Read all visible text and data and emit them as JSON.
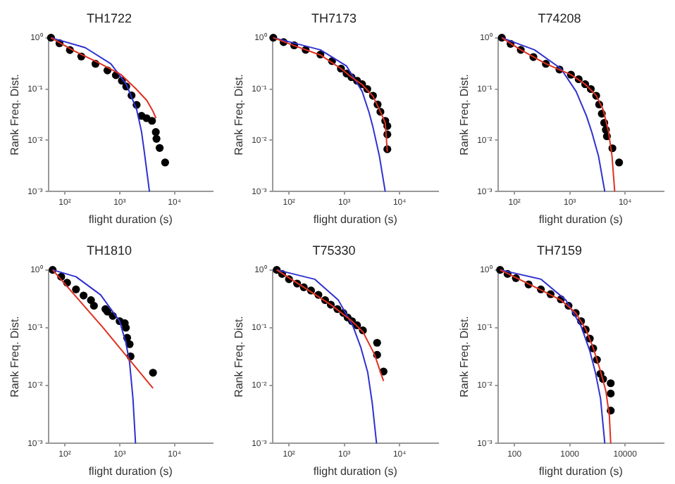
{
  "chart_data": [
    {
      "type": "scatter",
      "title": "TH1722",
      "xlabel": "flight duration (s)",
      "ylabel": "Rank Freq. Dist.",
      "log": "xy",
      "grid": false,
      "legend": false,
      "xlim": [
        50,
        50000
      ],
      "ylim": [
        0.001,
        1
      ],
      "xticks": [
        {
          "value": 100,
          "label": "10²"
        },
        {
          "value": 1000,
          "label": "10³"
        },
        {
          "value": 10000,
          "label": "10⁴"
        }
      ],
      "yticks": [
        {
          "value": 0.001,
          "label": "10⁻³"
        },
        {
          "value": 0.01,
          "label": "10⁻²"
        },
        {
          "value": 0.1,
          "label": "10⁻¹"
        },
        {
          "value": 1,
          "label": "10⁰"
        }
      ],
      "series": [
        {
          "marker": "circle",
          "color": "#000000",
          "x": [
            56,
            80,
            124,
            200,
            363,
            600,
            855,
            1100,
            1320,
            1650,
            2040,
            2510,
            3100,
            3890,
            4570,
            4700,
            5370,
            6760
          ],
          "values": [
            1,
            0.78,
            0.575,
            0.43,
            0.31,
            0.23,
            0.186,
            0.145,
            0.112,
            0.075,
            0.049,
            0.03,
            0.027,
            0.024,
            0.0145,
            0.0107,
            0.0071,
            0.0037
          ]
        },
        {
          "type": "line",
          "color": "#e03020",
          "x": [
            56,
            150,
            400,
            1070,
            2000,
            3130,
            4000,
            4600
          ],
          "values": [
            1,
            0.55,
            0.33,
            0.19,
            0.1,
            0.06,
            0.038,
            0.027
          ]
        },
        {
          "type": "line",
          "color": "#3030d0",
          "x": [
            56,
            236,
            690,
            1320,
            2040,
            2500,
            2800,
            3500
          ],
          "values": [
            1,
            0.64,
            0.31,
            0.124,
            0.04,
            0.015,
            0.0063,
            0.001
          ]
        }
      ]
    },
    {
      "type": "scatter",
      "title": "TH7173",
      "xlabel": "flight duration (s)",
      "ylabel": "Rank Freq. Dist.",
      "log": "xy",
      "grid": false,
      "legend": false,
      "xlim": [
        50,
        50000
      ],
      "ylim": [
        0.001,
        1
      ],
      "xticks": [
        {
          "value": 100,
          "label": "10²"
        },
        {
          "value": 1000,
          "label": "10³"
        },
        {
          "value": 10000,
          "label": "10⁴"
        }
      ],
      "yticks": [
        {
          "value": 0.001,
          "label": "10⁻³"
        },
        {
          "value": 0.01,
          "label": "10⁻²"
        },
        {
          "value": 0.1,
          "label": "10⁻¹"
        },
        {
          "value": 1,
          "label": "10⁰"
        }
      ],
      "series": [
        {
          "marker": "circle",
          "color": "#000000",
          "x": [
            52,
            80,
            124,
            200,
            370,
            600,
            870,
            1100,
            1350,
            1700,
            2100,
            2600,
            3300,
            4000,
            4500,
            5500,
            6000,
            6000,
            6000
          ],
          "values": [
            1,
            0.82,
            0.71,
            0.58,
            0.47,
            0.35,
            0.25,
            0.2,
            0.17,
            0.145,
            0.124,
            0.1,
            0.074,
            0.05,
            0.036,
            0.024,
            0.019,
            0.013,
            0.0067
          ]
        },
        {
          "type": "line",
          "color": "#e03020",
          "x": [
            52,
            124,
            370,
            870,
            1350,
            2100,
            3300,
            4500,
            5500,
            6000
          ],
          "values": [
            1,
            0.7,
            0.46,
            0.25,
            0.17,
            0.122,
            0.072,
            0.036,
            0.022,
            0.006
          ]
        },
        {
          "type": "line",
          "color": "#3030d0",
          "x": [
            52,
            370,
            1100,
            2100,
            2800,
            3300,
            4300,
            5500
          ],
          "values": [
            1,
            0.58,
            0.28,
            0.09,
            0.035,
            0.018,
            0.005,
            0.001
          ]
        }
      ]
    },
    {
      "type": "scatter",
      "title": "T74208",
      "xlabel": "flight duration (s)",
      "ylabel": "Rank Freq. Dist.",
      "log": "xy",
      "grid": false,
      "legend": false,
      "xlim": [
        50,
        50000
      ],
      "ylim": [
        0.001,
        1
      ],
      "xticks": [
        {
          "value": 100,
          "label": "10²"
        },
        {
          "value": 1000,
          "label": "10³"
        },
        {
          "value": 10000,
          "label": "10⁴"
        }
      ],
      "yticks": [
        {
          "value": 0.001,
          "label": "10⁻³"
        },
        {
          "value": 0.01,
          "label": "10⁻²"
        },
        {
          "value": 0.1,
          "label": "10⁻¹"
        },
        {
          "value": 1,
          "label": "10⁰"
        }
      ],
      "series": [
        {
          "marker": "circle",
          "color": "#000000",
          "x": [
            59,
            85,
            130,
            220,
            370,
            650,
            1050,
            1450,
            1900,
            2400,
            3000,
            3400,
            3800,
            4200,
            4500,
            4700,
            5900,
            7800
          ],
          "values": [
            1,
            0.76,
            0.58,
            0.42,
            0.31,
            0.24,
            0.19,
            0.155,
            0.124,
            0.1,
            0.074,
            0.05,
            0.033,
            0.022,
            0.016,
            0.012,
            0.007,
            0.0037
          ]
        },
        {
          "type": "line",
          "color": "#e03020",
          "x": [
            59,
            130,
            370,
            1050,
            1900,
            3000,
            4000,
            5000,
            5800,
            6500
          ],
          "values": [
            1,
            0.58,
            0.31,
            0.19,
            0.124,
            0.075,
            0.04,
            0.015,
            0.005,
            0.001
          ]
        },
        {
          "type": "line",
          "color": "#3030d0",
          "x": [
            59,
            230,
            690,
            1300,
            2000,
            2500,
            3300,
            4300
          ],
          "values": [
            1,
            0.58,
            0.25,
            0.09,
            0.03,
            0.0145,
            0.005,
            0.001
          ]
        }
      ]
    },
    {
      "type": "scatter",
      "title": "TH1810",
      "xlabel": "flight duration (s)",
      "ylabel": "Rank Freq. Dist.",
      "log": "xy",
      "grid": false,
      "legend": false,
      "xlim": [
        50,
        50000
      ],
      "ylim": [
        0.001,
        1
      ],
      "xticks": [
        {
          "value": 100,
          "label": "10²"
        },
        {
          "value": 1000,
          "label": "10³"
        },
        {
          "value": 10000,
          "label": "10⁴"
        }
      ],
      "yticks": [
        {
          "value": 0.001,
          "label": "10⁻³"
        },
        {
          "value": 0.01,
          "label": "10⁻²"
        },
        {
          "value": 0.1,
          "label": "10⁻¹"
        },
        {
          "value": 1,
          "label": "10⁰"
        }
      ],
      "series": [
        {
          "marker": "circle",
          "color": "#000000",
          "x": [
            60,
            86,
            110,
            160,
            220,
            300,
            340,
            550,
            600,
            750,
            1000,
            1240,
            1300,
            1370,
            1520,
            1580,
            4060
          ],
          "values": [
            1,
            0.76,
            0.6,
            0.46,
            0.36,
            0.3,
            0.24,
            0.21,
            0.19,
            0.16,
            0.13,
            0.12,
            0.1,
            0.067,
            0.052,
            0.032,
            0.0167
          ]
        },
        {
          "type": "line",
          "color": "#e03020",
          "x": [
            60,
            500,
            4060
          ],
          "values": [
            1,
            0.1,
            0.009
          ]
        },
        {
          "type": "line",
          "color": "#3030d0",
          "x": [
            60,
            160,
            450,
            1000,
            1300,
            1520,
            1750,
            1950
          ],
          "values": [
            1,
            0.76,
            0.37,
            0.13,
            0.055,
            0.025,
            0.006,
            0.001
          ]
        }
      ]
    },
    {
      "type": "scatter",
      "title": "T75330",
      "xlabel": "flight duration (s)",
      "ylabel": "Rank Freq. Dist.",
      "log": "xy",
      "grid": false,
      "legend": false,
      "xlim": [
        50,
        50000
      ],
      "ylim": [
        0.001,
        1
      ],
      "xticks": [
        {
          "value": 100,
          "label": "10²"
        },
        {
          "value": 1000,
          "label": "10³"
        },
        {
          "value": 10000,
          "label": "10⁴"
        }
      ],
      "yticks": [
        {
          "value": 0.001,
          "label": "10⁻³"
        },
        {
          "value": 0.01,
          "label": "10⁻²"
        },
        {
          "value": 0.1,
          "label": "10⁻¹"
        },
        {
          "value": 1,
          "label": "10⁰"
        }
      ],
      "series": [
        {
          "marker": "circle",
          "color": "#000000",
          "x": [
            60,
            75,
            100,
            140,
            185,
            250,
            340,
            450,
            570,
            750,
            960,
            1150,
            1380,
            1700,
            2170,
            3920,
            3920,
            5120
          ],
          "values": [
            1,
            0.85,
            0.69,
            0.58,
            0.5,
            0.44,
            0.37,
            0.3,
            0.25,
            0.21,
            0.18,
            0.15,
            0.13,
            0.11,
            0.09,
            0.055,
            0.034,
            0.0175
          ]
        },
        {
          "type": "line",
          "color": "#e03020",
          "x": [
            60,
            185,
            570,
            1380,
            2170,
            3500,
            5120
          ],
          "values": [
            1,
            0.5,
            0.25,
            0.13,
            0.085,
            0.035,
            0.012
          ]
        },
        {
          "type": "line",
          "color": "#3030d0",
          "x": [
            60,
            290,
            780,
            1430,
            2000,
            2650,
            3200,
            3830
          ],
          "values": [
            1,
            0.69,
            0.3,
            0.107,
            0.045,
            0.017,
            0.005,
            0.001
          ]
        }
      ]
    },
    {
      "type": "scatter",
      "title": "TH7159",
      "xlabel": "flight duration (s)",
      "ylabel": "Rank Freq. Dist.",
      "log": "xy",
      "grid": false,
      "legend": false,
      "xlim": [
        50,
        50000
      ],
      "ylim": [
        0.001,
        1
      ],
      "xticks": [
        100,
        1000,
        10000
      ],
      "yticks": [
        {
          "value": 0.001,
          "label": "10⁻³"
        },
        {
          "value": 0.01,
          "label": "10⁻²"
        },
        {
          "value": 0.1,
          "label": "10⁻¹"
        },
        {
          "value": 1,
          "label": "10⁰"
        }
      ],
      "series": [
        {
          "marker": "circle",
          "color": "#000000",
          "x": [
            55,
            75,
            106,
            180,
            300,
            450,
            690,
            950,
            1280,
            1600,
            1940,
            2300,
            2650,
            3100,
            3580,
            4000,
            5500,
            5500,
            5500
          ],
          "values": [
            1,
            0.85,
            0.72,
            0.56,
            0.46,
            0.38,
            0.31,
            0.24,
            0.18,
            0.13,
            0.093,
            0.065,
            0.044,
            0.028,
            0.016,
            0.013,
            0.011,
            0.0073,
            0.0037
          ]
        },
        {
          "type": "line",
          "color": "#e03020",
          "x": [
            55,
            300,
            690,
            1280,
            1940,
            2650,
            3580,
            4500,
            5200,
            5500
          ],
          "values": [
            1,
            0.45,
            0.3,
            0.18,
            0.095,
            0.045,
            0.018,
            0.008,
            0.003,
            0.001
          ]
        },
        {
          "type": "line",
          "color": "#3030d0",
          "x": [
            55,
            300,
            850,
            1600,
            2300,
            2900,
            3600,
            4300
          ],
          "values": [
            1,
            0.69,
            0.3,
            0.107,
            0.04,
            0.017,
            0.006,
            0.001
          ]
        }
      ]
    }
  ]
}
